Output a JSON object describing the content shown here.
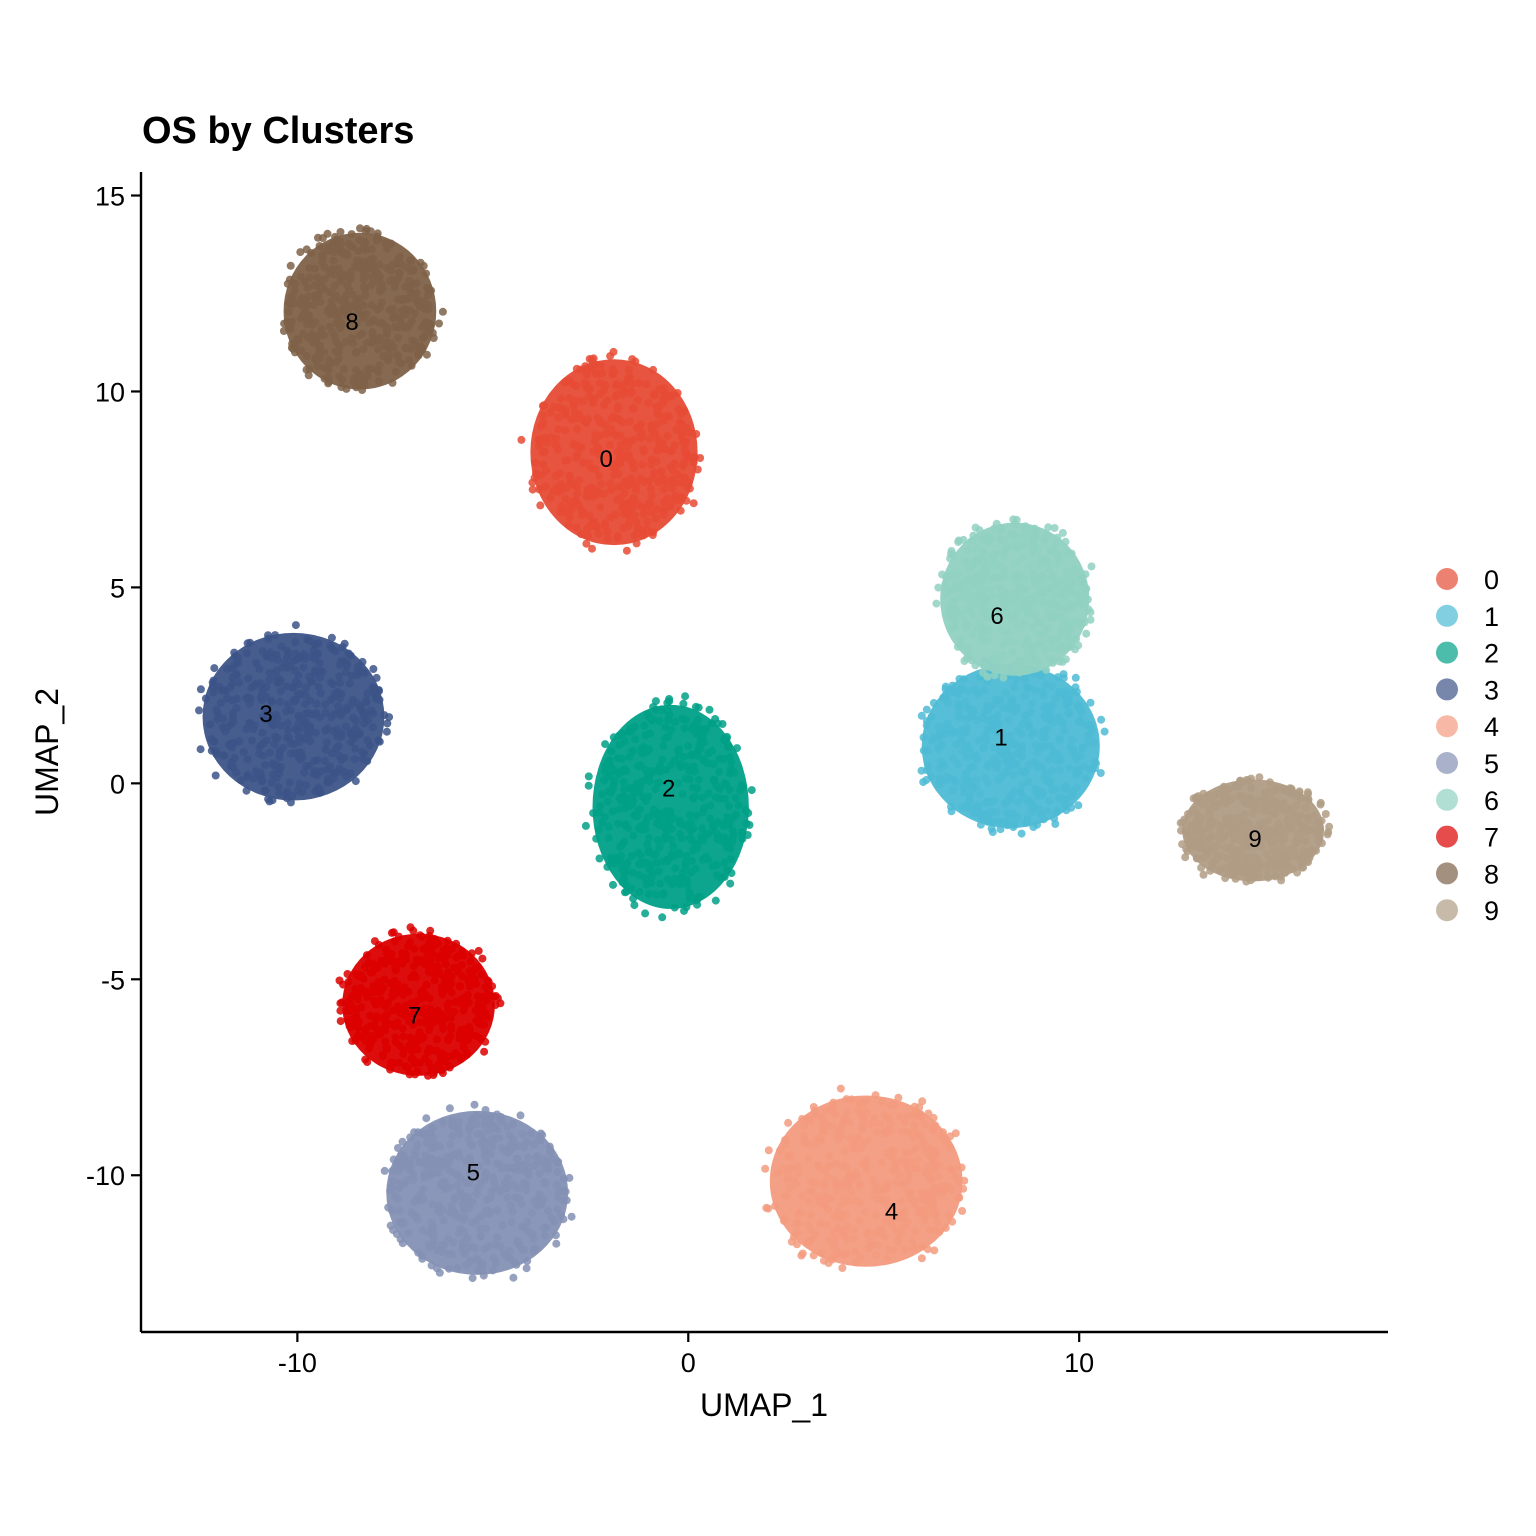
{
  "chart_data": {
    "type": "scatter",
    "title": "OS by Clusters",
    "xlabel": "UMAP_1",
    "ylabel": "UMAP_2",
    "xlim": [
      -14,
      17.9
    ],
    "ylim": [
      -14,
      15.6
    ],
    "xticks": [
      -10,
      0,
      10
    ],
    "yticks": [
      -10,
      -5,
      0,
      5,
      10,
      15
    ],
    "legend_position": "right",
    "grid": false,
    "clusters": [
      {
        "name": "0",
        "color": "#E64B35",
        "center": [
          -2.1,
          8.3
        ],
        "extent": {
          "x": [
            -4.2,
            0.4
          ],
          "y": [
            5.9,
            11.0
          ]
        },
        "label_pos": [
          -2.1,
          8.3
        ]
      },
      {
        "name": "1",
        "color": "#4DBBD5",
        "center": [
          8.5,
          1.2
        ],
        "extent": {
          "x": [
            5.8,
            10.7
          ],
          "y": [
            -1.3,
            3.2
          ]
        },
        "label_pos": [
          8.0,
          1.2
        ]
      },
      {
        "name": "2",
        "color": "#00A087",
        "center": [
          -0.3,
          -0.3
        ],
        "extent": {
          "x": [
            -2.6,
            1.7
          ],
          "y": [
            -3.4,
            2.2
          ]
        },
        "label_pos": [
          -0.5,
          -0.1
        ]
      },
      {
        "name": "3",
        "color": "#3C5488",
        "center": [
          -10.2,
          1.8
        ],
        "extent": {
          "x": [
            -12.6,
            -7.6
          ],
          "y": [
            -0.6,
            4.0
          ]
        },
        "label_pos": [
          -10.8,
          1.8
        ]
      },
      {
        "name": "4",
        "color": "#F39B7F",
        "center": [
          5.0,
          -10.5
        ],
        "extent": {
          "x": [
            1.9,
            7.2
          ],
          "y": [
            -12.5,
            -7.8
          ]
        },
        "label_pos": [
          5.2,
          -10.9
        ]
      },
      {
        "name": "5",
        "color": "#8491B4",
        "center": [
          -5.5,
          -10.2
        ],
        "extent": {
          "x": [
            -7.9,
            -2.9
          ],
          "y": [
            -12.7,
            -8.2
          ]
        },
        "label_pos": [
          -5.5,
          -9.9
        ]
      },
      {
        "name": "6",
        "color": "#91D1C2",
        "center": [
          8.0,
          4.4
        ],
        "extent": {
          "x": [
            6.3,
            10.4
          ],
          "y": [
            2.6,
            6.8
          ]
        },
        "label_pos": [
          7.9,
          4.3
        ]
      },
      {
        "name": "7",
        "color": "#DC0000",
        "center": [
          -7.0,
          -5.8
        ],
        "extent": {
          "x": [
            -9.0,
            -4.8
          ],
          "y": [
            -7.6,
            -3.7
          ]
        },
        "label_pos": [
          -7.0,
          -5.9
        ]
      },
      {
        "name": "8",
        "color": "#7E6148",
        "center": [
          -8.7,
          12.0
        ],
        "extent": {
          "x": [
            -10.5,
            -6.3
          ],
          "y": [
            9.9,
            14.2
          ]
        },
        "label_pos": [
          -8.6,
          11.8
        ]
      },
      {
        "name": "9",
        "color": "#B09C85",
        "center": [
          14.5,
          -1.4
        ],
        "extent": {
          "x": [
            12.5,
            16.4
          ],
          "y": [
            -2.6,
            0.2
          ]
        },
        "label_pos": [
          14.5,
          -1.4
        ]
      }
    ]
  }
}
